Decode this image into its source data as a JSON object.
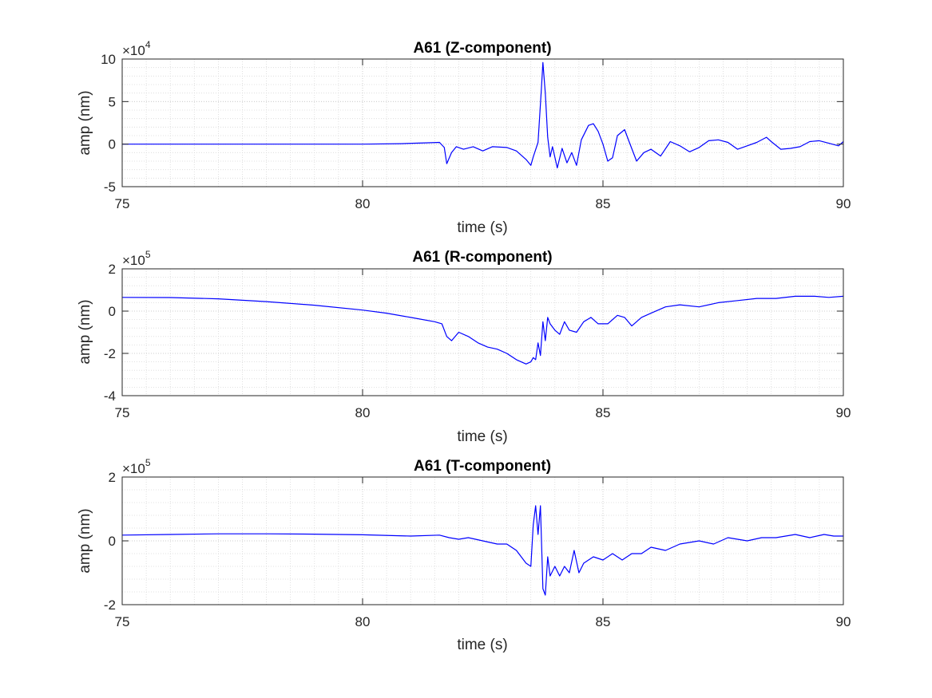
{
  "chart_data": [
    {
      "type": "line",
      "title": "A61 (Z-component)",
      "xlabel": "time (s)",
      "ylabel": "amp (nm)",
      "exponent_label": "×10",
      "exponent": "4",
      "xlim": [
        75,
        90
      ],
      "ylim": [
        -5,
        10
      ],
      "xticks": [
        75,
        80,
        85,
        90
      ],
      "yticks": [
        -5,
        0,
        5,
        10
      ],
      "grid": true,
      "minor_grid": true,
      "color": "#0000ff",
      "series": [
        {
          "x": [
            75,
            78,
            80,
            80.8,
            81.3,
            81.6,
            81.7,
            81.75,
            81.85,
            81.95,
            82.1,
            82.3,
            82.5,
            82.7,
            83.0,
            83.2,
            83.4,
            83.5,
            83.55,
            83.65,
            83.72,
            83.75,
            83.8,
            83.85,
            83.9,
            83.95,
            84.05,
            84.15,
            84.25,
            84.35,
            84.45,
            84.55,
            84.7,
            84.8,
            84.9,
            85.0,
            85.1,
            85.2,
            85.3,
            85.45,
            85.55,
            85.7,
            85.85,
            86.0,
            86.2,
            86.4,
            86.6,
            86.8,
            87.0,
            87.2,
            87.4,
            87.6,
            87.8,
            88.0,
            88.2,
            88.4,
            88.5,
            88.7,
            88.9,
            89.1,
            89.3,
            89.5,
            89.7,
            89.9,
            90
          ],
          "y": [
            0,
            0,
            0,
            0.05,
            0.15,
            0.2,
            -0.4,
            -2.3,
            -1.0,
            -0.3,
            -0.6,
            -0.3,
            -0.8,
            -0.3,
            -0.4,
            -0.8,
            -1.8,
            -2.5,
            -1.5,
            0.2,
            6.5,
            9.6,
            6.0,
            0.8,
            -1.5,
            -0.3,
            -2.8,
            -0.5,
            -2.2,
            -1.0,
            -2.5,
            0.5,
            2.2,
            2.4,
            1.5,
            0.0,
            -2.0,
            -1.6,
            1.0,
            1.7,
            0.2,
            -2.0,
            -1.0,
            -0.6,
            -1.4,
            0.3,
            -0.2,
            -0.9,
            -0.4,
            0.4,
            0.5,
            0.2,
            -0.6,
            -0.2,
            0.2,
            0.8,
            0.3,
            -0.6,
            -0.5,
            -0.3,
            0.3,
            0.4,
            0.1,
            -0.2,
            0.3
          ]
        }
      ]
    },
    {
      "type": "line",
      "title": "A61 (R-component)",
      "xlabel": "time (s)",
      "ylabel": "amp (nm)",
      "exponent_label": "×10",
      "exponent": "5",
      "xlim": [
        75,
        90
      ],
      "ylim": [
        -4,
        2
      ],
      "xticks": [
        75,
        80,
        85,
        90
      ],
      "yticks": [
        -4,
        -2,
        0,
        2
      ],
      "grid": true,
      "minor_grid": true,
      "color": "#0000ff",
      "series": [
        {
          "x": [
            75,
            76,
            77,
            78,
            79,
            80,
            80.5,
            81,
            81.5,
            81.65,
            81.75,
            81.85,
            82.0,
            82.2,
            82.4,
            82.6,
            82.8,
            83.0,
            83.2,
            83.4,
            83.5,
            83.55,
            83.6,
            83.65,
            83.7,
            83.75,
            83.8,
            83.85,
            83.9,
            84.0,
            84.1,
            84.2,
            84.3,
            84.45,
            84.6,
            84.75,
            84.9,
            85.1,
            85.3,
            85.45,
            85.6,
            85.8,
            86.0,
            86.3,
            86.6,
            87.0,
            87.4,
            87.8,
            88.2,
            88.6,
            89.0,
            89.4,
            89.7,
            90
          ],
          "y": [
            0.65,
            0.64,
            0.58,
            0.45,
            0.28,
            0.05,
            -0.1,
            -0.3,
            -0.5,
            -0.6,
            -1.2,
            -1.4,
            -1.0,
            -1.2,
            -1.5,
            -1.7,
            -1.8,
            -2.0,
            -2.3,
            -2.5,
            -2.4,
            -2.2,
            -2.3,
            -1.5,
            -2.1,
            -0.5,
            -1.4,
            -0.3,
            -0.6,
            -0.9,
            -1.1,
            -0.5,
            -0.9,
            -1.0,
            -0.5,
            -0.3,
            -0.6,
            -0.6,
            -0.2,
            -0.3,
            -0.7,
            -0.3,
            -0.1,
            0.2,
            0.3,
            0.2,
            0.4,
            0.5,
            0.6,
            0.6,
            0.7,
            0.7,
            0.65,
            0.7
          ]
        }
      ]
    },
    {
      "type": "line",
      "title": "A61 (T-component)",
      "xlabel": "time (s)",
      "ylabel": "amp (nm)",
      "exponent_label": "×10",
      "exponent": "5",
      "xlim": [
        75,
        90
      ],
      "ylim": [
        -2,
        2
      ],
      "xticks": [
        75,
        80,
        85,
        90
      ],
      "yticks": [
        -2,
        0,
        2
      ],
      "grid": true,
      "minor_grid": true,
      "color": "#0000ff",
      "series": [
        {
          "x": [
            75,
            76,
            77,
            78,
            79,
            80,
            81,
            81.6,
            81.8,
            82.0,
            82.2,
            82.5,
            82.8,
            83.0,
            83.2,
            83.4,
            83.5,
            83.55,
            83.6,
            83.65,
            83.7,
            83.75,
            83.8,
            83.85,
            83.9,
            84.0,
            84.1,
            84.2,
            84.3,
            84.4,
            84.5,
            84.6,
            84.8,
            85.0,
            85.2,
            85.4,
            85.6,
            85.8,
            86.0,
            86.3,
            86.6,
            87.0,
            87.3,
            87.6,
            88.0,
            88.3,
            88.6,
            89.0,
            89.3,
            89.6,
            89.8,
            90
          ],
          "y": [
            0.18,
            0.2,
            0.22,
            0.22,
            0.21,
            0.19,
            0.15,
            0.18,
            0.1,
            0.05,
            0.1,
            0.0,
            -0.1,
            -0.1,
            -0.3,
            -0.7,
            -0.8,
            0.5,
            1.1,
            0.2,
            1.1,
            -1.5,
            -1.7,
            -0.5,
            -1.1,
            -0.8,
            -1.1,
            -0.8,
            -1.0,
            -0.3,
            -1.0,
            -0.7,
            -0.5,
            -0.6,
            -0.4,
            -0.6,
            -0.4,
            -0.4,
            -0.2,
            -0.3,
            -0.1,
            0.0,
            -0.1,
            0.1,
            0.0,
            0.1,
            0.1,
            0.2,
            0.1,
            0.2,
            0.15,
            0.15
          ]
        }
      ]
    }
  ]
}
